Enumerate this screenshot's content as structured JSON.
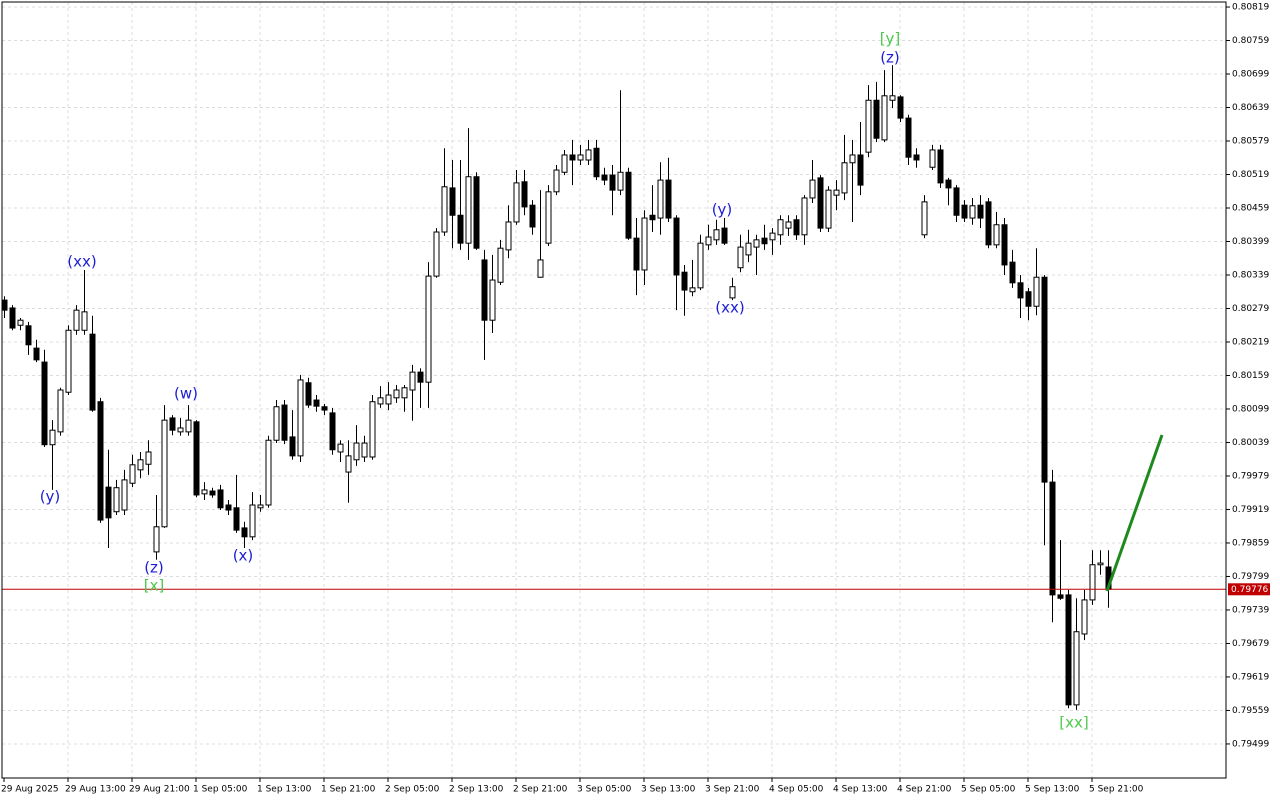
{
  "chart_data": {
    "type": "candlestick",
    "categories": [
      "29 Aug 2025",
      null,
      null,
      null,
      null,
      null,
      null,
      null,
      "29 Aug 13:00",
      null,
      null,
      null,
      null,
      null,
      null,
      null,
      "29 Aug 21:00",
      null,
      null,
      null,
      null,
      null,
      null,
      null,
      "1 Sep 05:00",
      null,
      null,
      null,
      null,
      null,
      null,
      null,
      "1 Sep 13:00",
      null,
      null,
      null,
      null,
      null,
      null,
      null,
      "1 Sep 21:00",
      null,
      null,
      null,
      null,
      null,
      null,
      null,
      "2 Sep 05:00",
      null,
      null,
      null,
      null,
      null,
      null,
      null,
      "2 Sep 13:00",
      null,
      null,
      null,
      null,
      null,
      null,
      null,
      "2 Sep 21:00",
      null,
      null,
      null,
      null,
      null,
      null,
      null,
      "3 Sep 05:00",
      null,
      null,
      null,
      null,
      null,
      null,
      null,
      "3 Sep 13:00",
      null,
      null,
      null,
      null,
      null,
      null,
      null,
      "3 Sep 21:00",
      null,
      null,
      null,
      null,
      null,
      null,
      null,
      "4 Sep 05:00",
      null,
      null,
      null,
      null,
      null,
      null,
      null,
      "4 Sep 13:00",
      null,
      null,
      null,
      null,
      null,
      null,
      null,
      "4 Sep 21:00",
      null,
      null,
      null,
      null,
      null,
      null,
      null,
      "5 Sep 05:00",
      null,
      null,
      null,
      null,
      null,
      null,
      null,
      "5 Sep 13:00",
      null,
      null,
      null,
      null,
      null,
      null,
      null,
      "5 Sep 21:00",
      null,
      null
    ],
    "open": [
      0.80294,
      0.8028,
      0.80249,
      0.80248,
      0.80208,
      0.80183,
      0.80035,
      0.80058,
      0.80129,
      0.8024,
      0.8024,
      0.80233,
      0.80112,
      0.79959,
      0.79915,
      0.79918,
      0.79966,
      0.7999,
      0.8,
      0.79843,
      0.79888,
      0.80083,
      0.80058,
      0.80058,
      0.80076,
      0.79947,
      0.79952,
      0.79954,
      0.79927,
      0.79922,
      0.79886,
      0.7987,
      0.79922,
      0.79927,
      0.80043,
      0.80106,
      0.80049,
      0.80015,
      0.80146,
      0.80115,
      0.80103,
      0.80092,
      0.80022,
      0.79986,
      0.80008,
      0.80013,
      0.80013,
      0.80108,
      0.80108,
      0.80119,
      0.80119,
      0.80133,
      0.80165,
      0.80147,
      0.80337,
      0.80416,
      0.80495,
      0.80446,
      0.80396,
      0.80515,
      0.80366,
      0.80258,
      0.80326,
      0.80384,
      0.80434,
      0.80506,
      0.80464,
      0.80335,
      0.80396,
      0.80488,
      0.80523,
      0.80554,
      0.80545,
      0.80545,
      0.80566,
      0.80518,
      0.80518,
      0.80491,
      0.80523,
      0.80405,
      0.80348,
      0.80446,
      0.80441,
      0.80509,
      0.80441,
      0.80344,
      0.80309,
      0.80316,
      0.80393,
      0.80402,
      0.80423,
      0.80298,
      0.80352,
      0.80375,
      0.80389,
      0.80405,
      0.80402,
      0.80411,
      0.80423,
      0.80438,
      0.80411,
      0.80477,
      0.80513,
      0.80423,
      0.80482,
      0.80486,
      0.8054,
      0.80554,
      0.80559,
      0.80652,
      0.80581,
      0.80652,
      0.80658,
      0.8062,
      0.80554,
      0.80411,
      0.80532,
      0.80563,
      0.80509,
      0.80495,
      0.80464,
      0.80441,
      0.80464,
      0.8047,
      0.80393,
      0.80429,
      0.80362,
      0.80325,
      0.80309,
      0.80283,
      0.80335,
      0.79968,
      0.79766,
      0.79766,
      0.79569,
      0.79696,
      0.79757,
      0.7982,
      0.79816
    ],
    "high": [
      0.80301,
      0.80285,
      0.80262,
      0.80255,
      0.80223,
      0.80205,
      0.80079,
      0.80137,
      0.80249,
      0.80285,
      0.80348,
      0.80266,
      0.80119,
      0.80026,
      0.79972,
      0.7999,
      0.80017,
      0.80022,
      0.80043,
      0.79945,
      0.80106,
      0.80088,
      0.80083,
      0.80106,
      0.80079,
      0.79968,
      0.79958,
      0.79963,
      0.79936,
      0.79981,
      0.79897,
      0.7995,
      0.79945,
      0.80051,
      0.80115,
      0.80115,
      0.80097,
      0.8016,
      0.80155,
      0.80124,
      0.80108,
      0.80101,
      0.80043,
      0.80043,
      0.8007,
      0.80051,
      0.80124,
      0.8014,
      0.80147,
      0.80142,
      0.80142,
      0.80178,
      0.80172,
      0.80362,
      0.80423,
      0.80566,
      0.80545,
      0.80545,
      0.80602,
      0.80523,
      0.80384,
      0.80375,
      0.80402,
      0.80464,
      0.80527,
      0.80527,
      0.80473,
      0.80491,
      0.805,
      0.80536,
      0.80563,
      0.80581,
      0.80572,
      0.80581,
      0.80581,
      0.80531,
      0.80536,
      0.8067,
      0.80531,
      0.80441,
      0.80455,
      0.805,
      0.80541,
      0.80549,
      0.80446,
      0.80357,
      0.80366,
      0.80411,
      0.80429,
      0.80438,
      0.80441,
      0.80334,
      0.80411,
      0.8042,
      0.80411,
      0.80429,
      0.80423,
      0.80446,
      0.80446,
      0.80446,
      0.80482,
      0.80545,
      0.80518,
      0.80498,
      0.80509,
      0.8059,
      0.80581,
      0.80613,
      0.80679,
      0.80685,
      0.80706,
      0.80715,
      0.80661,
      0.80626,
      0.80566,
      0.80482,
      0.80572,
      0.80572,
      0.80513,
      0.805,
      0.80473,
      0.80477,
      0.80482,
      0.80477,
      0.80452,
      0.80441,
      0.80384,
      0.80339,
      0.80316,
      0.80387,
      0.80339,
      0.7999,
      0.79864,
      0.79775,
      0.7976,
      0.79775,
      0.79846,
      0.79846,
      0.79846
    ],
    "low": [
      0.80262,
      0.8024,
      0.8024,
      0.80196,
      0.80183,
      0.80031,
      0.79954,
      0.80051,
      0.80124,
      0.80232,
      0.80232,
      0.80094,
      0.79895,
      0.7985,
      0.79909,
      0.79909,
      0.79959,
      0.79975,
      0.79981,
      0.79829,
      0.79886,
      0.80052,
      0.80051,
      0.80051,
      0.79941,
      0.79936,
      0.7994,
      0.79918,
      0.79909,
      0.79877,
      0.7985,
      0.79864,
      0.79915,
      0.79922,
      0.80038,
      0.80036,
      0.80008,
      0.80004,
      0.80101,
      0.80094,
      0.80088,
      0.80017,
      0.80004,
      0.79931,
      0.79997,
      0.80004,
      0.80008,
      0.80101,
      0.80097,
      0.8011,
      0.80094,
      0.80078,
      0.80101,
      0.80101,
      0.80334,
      0.80409,
      0.80387,
      0.80384,
      0.80366,
      0.80384,
      0.80187,
      0.80235,
      0.80321,
      0.80369,
      0.80429,
      0.80446,
      0.80411,
      0.80334,
      0.80391,
      0.80482,
      0.80518,
      0.805,
      0.80536,
      0.80536,
      0.80509,
      0.805,
      0.80446,
      0.80482,
      0.80402,
      0.80303,
      0.80321,
      0.80416,
      0.80411,
      0.80434,
      0.80276,
      0.80266,
      0.80301,
      0.80312,
      0.80384,
      0.80393,
      0.80393,
      0.80294,
      0.80344,
      0.80362,
      0.80339,
      0.80384,
      0.80375,
      0.80393,
      0.80409,
      0.80402,
      0.80393,
      0.80468,
      0.80416,
      0.80416,
      0.80455,
      0.80473,
      0.80434,
      0.80482,
      0.8055,
      0.80577,
      0.80577,
      0.80638,
      0.80613,
      0.80536,
      0.80531,
      0.80405,
      0.80527,
      0.80495,
      0.80464,
      0.80434,
      0.80434,
      0.80429,
      0.80423,
      0.80387,
      0.80387,
      0.80339,
      0.80316,
      0.80262,
      0.80258,
      0.80267,
      0.79855,
      0.79717,
      0.79757,
      0.79563,
      0.7956,
      0.79685,
      0.79748,
      0.79802,
      0.79743
    ],
    "close": [
      0.80276,
      0.80244,
      0.80258,
      0.80214,
      0.80187,
      0.80035,
      0.80061,
      0.80133,
      0.8024,
      0.80276,
      0.80273,
      0.80097,
      0.799,
      0.79904,
      0.79958,
      0.79972,
      0.79999,
      0.80008,
      0.80022,
      0.79888,
      0.80079,
      0.80061,
      0.80065,
      0.80079,
      0.79945,
      0.79954,
      0.79945,
      0.79922,
      0.79918,
      0.79882,
      0.7987,
      0.79927,
      0.79927,
      0.80043,
      0.80103,
      0.80043,
      0.80015,
      0.80151,
      0.80106,
      0.80104,
      0.80097,
      0.80026,
      0.80036,
      0.80015,
      0.80038,
      0.80038,
      0.80112,
      0.80119,
      0.80124,
      0.80133,
      0.80137,
      0.80165,
      0.80147,
      0.80337,
      0.80416,
      0.80497,
      0.80446,
      0.80396,
      0.80515,
      0.80387,
      0.80258,
      0.8033,
      0.80387,
      0.80434,
      0.80504,
      0.80461,
      0.80425,
      0.80366,
      0.80488,
      0.80527,
      0.80554,
      0.80545,
      0.80554,
      0.80563,
      0.80515,
      0.80509,
      0.80491,
      0.80523,
      0.80405,
      0.80348,
      0.80441,
      0.80438,
      0.80509,
      0.80441,
      0.80339,
      0.80312,
      0.80316,
      0.80396,
      0.80407,
      0.8042,
      0.80396,
      0.80318,
      0.80389,
      0.80396,
      0.80402,
      0.80395,
      0.80414,
      0.80438,
      0.80434,
      0.80411,
      0.80477,
      0.80509,
      0.80423,
      0.80491,
      0.80491,
      0.8054,
      0.80554,
      0.805,
      0.80652,
      0.80584,
      0.8066,
      0.8066,
      0.8062,
      0.8055,
      0.80545,
      0.8047,
      0.80563,
      0.80504,
      0.80495,
      0.80446,
      0.80441,
      0.80463,
      0.80441,
      0.80393,
      0.80429,
      0.80357,
      0.80325,
      0.80298,
      0.80283,
      0.80335,
      0.79968,
      0.79766,
      0.7976,
      0.79569,
      0.797,
      0.79757,
      0.7982,
      0.79823,
      0.79776
    ],
    "up_color": "#ffffff",
    "down_color": "#000000",
    "ylim": [
      0.79438,
      0.80828
    ],
    "yticks": [
      0.80819,
      0.80759,
      0.80699,
      0.80639,
      0.80579,
      0.80519,
      0.80459,
      0.80399,
      0.80339,
      0.80279,
      0.80219,
      0.80159,
      0.80099,
      0.80039,
      0.79979,
      0.79919,
      0.79859,
      0.79799,
      0.79739,
      0.79679,
      0.79619,
      0.79559,
      0.79499
    ],
    "grid": true,
    "current_price": 0.79776,
    "current_price_color": "#c00000",
    "annotations": [
      {
        "text": "(xx)",
        "color": "#1c1cd8"
      },
      {
        "text": "(y)",
        "color": "#1c1cd8"
      },
      {
        "text": "(z)",
        "color": "#1c1cd8"
      },
      {
        "text": "[x]",
        "color": "#4cc94c"
      },
      {
        "text": "(w)",
        "color": "#1c1cd8"
      },
      {
        "text": "(x)",
        "color": "#1c1cd8"
      },
      {
        "text": "(y)",
        "color": "#1c1cd8"
      },
      {
        "text": "(xx)",
        "color": "#1c1cd8"
      },
      {
        "text": "[y]",
        "color": "#4cc94c"
      },
      {
        "text": "(z)",
        "color": "#1c1cd8"
      },
      {
        "text": "[xx]",
        "color": "#4cc94c"
      }
    ]
  }
}
